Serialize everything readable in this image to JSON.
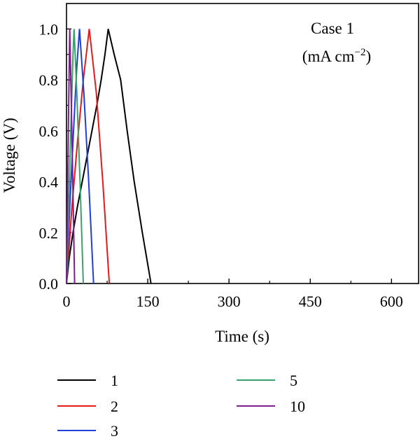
{
  "chart_data": {
    "type": "line",
    "title": "",
    "xlabel": "Time (s)",
    "ylabel": "Voltage (V)",
    "xlim": [
      0,
      650
    ],
    "ylim": [
      0,
      1.1
    ],
    "xticks": [
      "0",
      "150",
      "300",
      "450",
      "600"
    ],
    "yticks": [
      "0.0",
      "0.2",
      "0.4",
      "0.6",
      "0.8",
      "1.0"
    ],
    "annotation": {
      "line1": "Case 1",
      "line2_prefix": "(mA cm",
      "line2_sup": "−2",
      "line2_suffix": ")"
    },
    "grid": false,
    "legend_position": "bottom",
    "series": [
      {
        "name": "1",
        "color": "#000000",
        "points": [
          [
            0,
            0
          ],
          [
            5,
            0.1
          ],
          [
            12,
            0.2
          ],
          [
            20,
            0.3
          ],
          [
            29,
            0.4
          ],
          [
            38,
            0.5
          ],
          [
            47,
            0.6
          ],
          [
            56,
            0.7
          ],
          [
            64,
            0.8
          ],
          [
            71,
            0.9
          ],
          [
            77,
            1.0
          ],
          [
            88,
            0.9
          ],
          [
            100,
            0.8
          ],
          [
            112,
            0.6
          ],
          [
            125,
            0.4
          ],
          [
            140,
            0.2
          ],
          [
            156,
            0.0
          ]
        ]
      },
      {
        "name": "2",
        "color": "#e41a1c",
        "points": [
          [
            0,
            0
          ],
          [
            10,
            0.3
          ],
          [
            20,
            0.55
          ],
          [
            31,
            0.8
          ],
          [
            42,
            1.0
          ],
          [
            55,
            0.75
          ],
          [
            67,
            0.4
          ],
          [
            79,
            0.0
          ]
        ]
      },
      {
        "name": "3",
        "color": "#1f3fd6",
        "points": [
          [
            0,
            0
          ],
          [
            6,
            0.3
          ],
          [
            13,
            0.6
          ],
          [
            19,
            0.85
          ],
          [
            24,
            1.0
          ],
          [
            32,
            0.75
          ],
          [
            41,
            0.4
          ],
          [
            50,
            0.0
          ]
        ]
      },
      {
        "name": "5",
        "color": "#3aa36b",
        "points": [
          [
            0,
            0
          ],
          [
            4,
            0.3
          ],
          [
            8,
            0.6
          ],
          [
            12,
            0.9
          ],
          [
            14,
            1.0
          ],
          [
            19,
            0.75
          ],
          [
            25,
            0.4
          ],
          [
            31,
            0.0
          ]
        ]
      },
      {
        "name": "10",
        "color": "#7a1f8c",
        "points": [
          [
            0,
            0
          ],
          [
            2,
            0.35
          ],
          [
            4,
            0.7
          ],
          [
            6,
            1.0
          ],
          [
            9,
            0.7
          ],
          [
            12,
            0.35
          ],
          [
            15,
            0.0
          ]
        ]
      }
    ]
  }
}
